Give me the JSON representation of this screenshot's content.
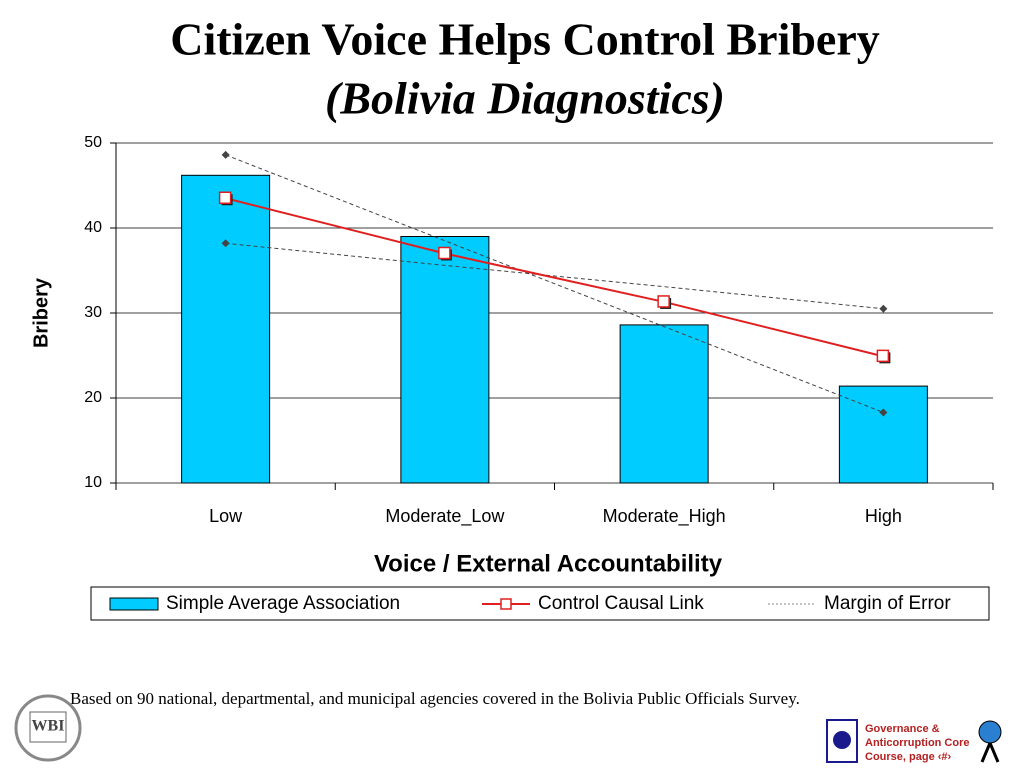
{
  "chart_data": {
    "type": "bar",
    "title": "Citizen Voice Helps Control Bribery",
    "subtitle": "(Bolivia Diagnostics)",
    "y_label": "Bribery",
    "x_label": "Voice / External Accountability",
    "categories": [
      "Low",
      "Moderate_Low",
      "Moderate_High",
      "High"
    ],
    "series": [
      {
        "name": "Simple Average Association",
        "type": "bar",
        "color": "#00ccff",
        "values": [
          46.2,
          39,
          28.6,
          21.4
        ]
      },
      {
        "name": "Control Causal Link",
        "type": "line",
        "color": "#e02020",
        "values": [
          43.5,
          37,
          31.3,
          24.9
        ]
      },
      {
        "name": "Margin of Error",
        "type": "band",
        "color": "#444444",
        "values": [
          48.6,
          38.5,
          28.4,
          18.3
        ],
        "values2": [
          38.2,
          35.6,
          33.1,
          30.5
        ]
      }
    ],
    "ylim": [
      10,
      50
    ],
    "yticks": [
      10,
      20,
      30,
      40,
      50
    ],
    "grid": true,
    "legend": "bottom"
  },
  "footer": {
    "note": "Based on 90 national, departmental, and municipal agencies covered in the Bolivia Public Officials Survey.",
    "logo": "WBI",
    "course": [
      "Governance &",
      "Anticorruption Core",
      "Course, page ‹#›"
    ]
  }
}
